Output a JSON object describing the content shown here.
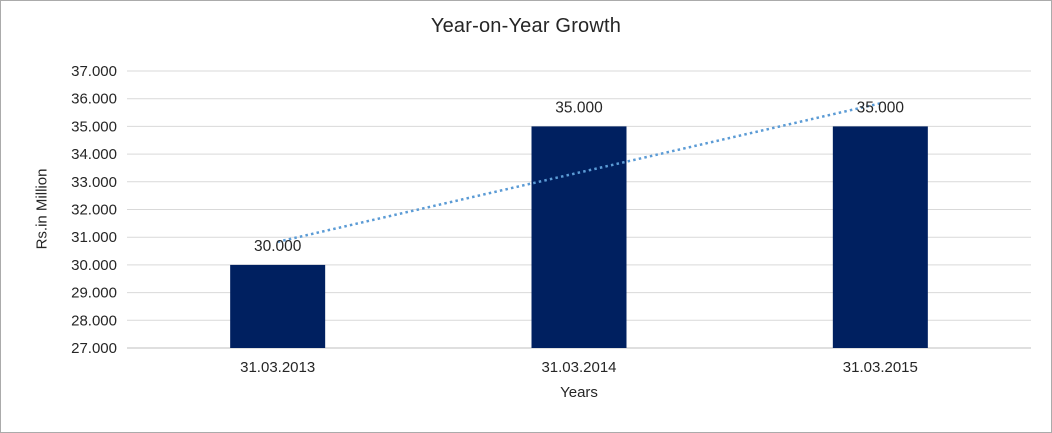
{
  "window": {
    "background_color": "#FFFFFF",
    "border_color": "#ABABAB"
  },
  "chart_data": {
    "type": "bar",
    "title": "Year-on-Year Growth",
    "xlabel": "Years",
    "ylabel": "Rs.in Million",
    "categories": [
      "31.03.2013",
      "31.03.2014",
      "31.03.2015"
    ],
    "values": [
      30000,
      35000,
      35000
    ],
    "data_labels": [
      "30.000",
      "35.000",
      "35.000"
    ],
    "ylim": [
      27000,
      37000
    ],
    "y_tick_step": 1000,
    "y_ticks": [
      {
        "value": 37000,
        "label": "37.000"
      },
      {
        "value": 36000,
        "label": "36.000"
      },
      {
        "value": 35000,
        "label": "35.000"
      },
      {
        "value": 34000,
        "label": "34.000"
      },
      {
        "value": 33000,
        "label": "33.000"
      },
      {
        "value": 32000,
        "label": "32.000"
      },
      {
        "value": 31000,
        "label": "31.000"
      },
      {
        "value": 30000,
        "label": "30.000"
      },
      {
        "value": 29000,
        "label": "29.000"
      },
      {
        "value": 28000,
        "label": "28.000"
      },
      {
        "value": 27000,
        "label": "27.000"
      }
    ],
    "grid": "horizontal",
    "legend": "none",
    "bar_color": "#002060",
    "gridline_color": "#D9D9D9",
    "axis_line_color": "#BFBFBF",
    "text_color": "#262626",
    "trendline": {
      "type": "linear",
      "style": "dotted",
      "color": "#5B9BD5",
      "start_value": 30833,
      "end_value": 35833
    }
  }
}
